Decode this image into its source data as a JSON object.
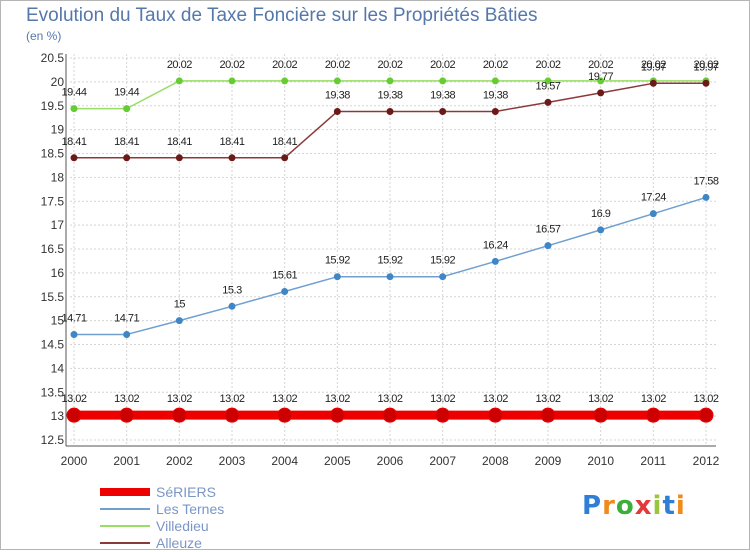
{
  "chart_data": {
    "type": "line",
    "title": "Evolution du Taux de Taxe Foncière sur les Propriétés Bâties",
    "subtitle": "(en %)",
    "xlabel": "",
    "ylabel": "",
    "x": [
      "2000",
      "2001",
      "2002",
      "2003",
      "2004",
      "2005",
      "2006",
      "2007",
      "2008",
      "2009",
      "2010",
      "2011",
      "2012"
    ],
    "ylim": [
      12.5,
      20.5
    ],
    "yticks": [
      "12.5",
      "13",
      "13.5",
      "14",
      "14.5",
      "15",
      "15.5",
      "16",
      "16.5",
      "17",
      "17.5",
      "18",
      "18.5",
      "19",
      "19.5",
      "20",
      "20.5"
    ],
    "grid": true,
    "legend_position": "bottom-left",
    "series": [
      {
        "name": "SéRIERS",
        "color": "#ee0000",
        "point_color": "#cc0000",
        "thick": true,
        "values": [
          13.02,
          13.02,
          13.02,
          13.02,
          13.02,
          13.02,
          13.02,
          13.02,
          13.02,
          13.02,
          13.02,
          13.02,
          13.02
        ],
        "labels": [
          "13.02",
          "13.02",
          "13.02",
          "13.02",
          "13.02",
          "13.02",
          "13.02",
          "13.02",
          "13.02",
          "13.02",
          "13.02",
          "13.02",
          "13.02"
        ]
      },
      {
        "name": "Les Ternes",
        "color": "#6fa0d0",
        "point_color": "#3f86c6",
        "thick": false,
        "values": [
          14.71,
          14.71,
          15,
          15.3,
          15.61,
          15.92,
          15.92,
          15.92,
          16.24,
          16.57,
          16.9,
          17.24,
          17.58
        ],
        "labels": [
          "14.71",
          "14.71",
          "15",
          "15.3",
          "15.61",
          "15.92",
          "15.92",
          "15.92",
          "16.24",
          "16.57",
          "16.9",
          "17.24",
          "17.58"
        ]
      },
      {
        "name": "Villedieu",
        "color": "#99dd66",
        "point_color": "#66cc33",
        "thick": false,
        "values": [
          19.44,
          19.44,
          20.02,
          20.02,
          20.02,
          20.02,
          20.02,
          20.02,
          20.02,
          20.02,
          20.02,
          20.02,
          20.02
        ],
        "labels": [
          "19.44",
          "19.44",
          "20.02",
          "20.02",
          "20.02",
          "20.02",
          "20.02",
          "20.02",
          "20.02",
          "20.02",
          "20.02",
          "20.02",
          "20.02"
        ]
      },
      {
        "name": "Alleuze",
        "color": "#8b3a3a",
        "point_color": "#6b1a1a",
        "thick": false,
        "values": [
          18.41,
          18.41,
          18.41,
          18.41,
          18.41,
          19.38,
          19.38,
          19.38,
          19.38,
          19.57,
          19.77,
          19.97,
          19.97
        ],
        "labels": [
          "18.41",
          "18.41",
          "18.41",
          "18.41",
          "18.41",
          "19.38",
          "19.38",
          "19.38",
          "19.38",
          "19.57",
          "19.77",
          "19.97",
          "19.97"
        ]
      }
    ]
  },
  "logo": {
    "letters": [
      "P",
      "r",
      "o",
      "x",
      "i",
      "t",
      "i"
    ],
    "colors": [
      "#2f7fd6",
      "#f08a1a",
      "#3cae3c",
      "#e23a3a",
      "#9bc53d",
      "#2f7fd6",
      "#f08a1a"
    ]
  }
}
